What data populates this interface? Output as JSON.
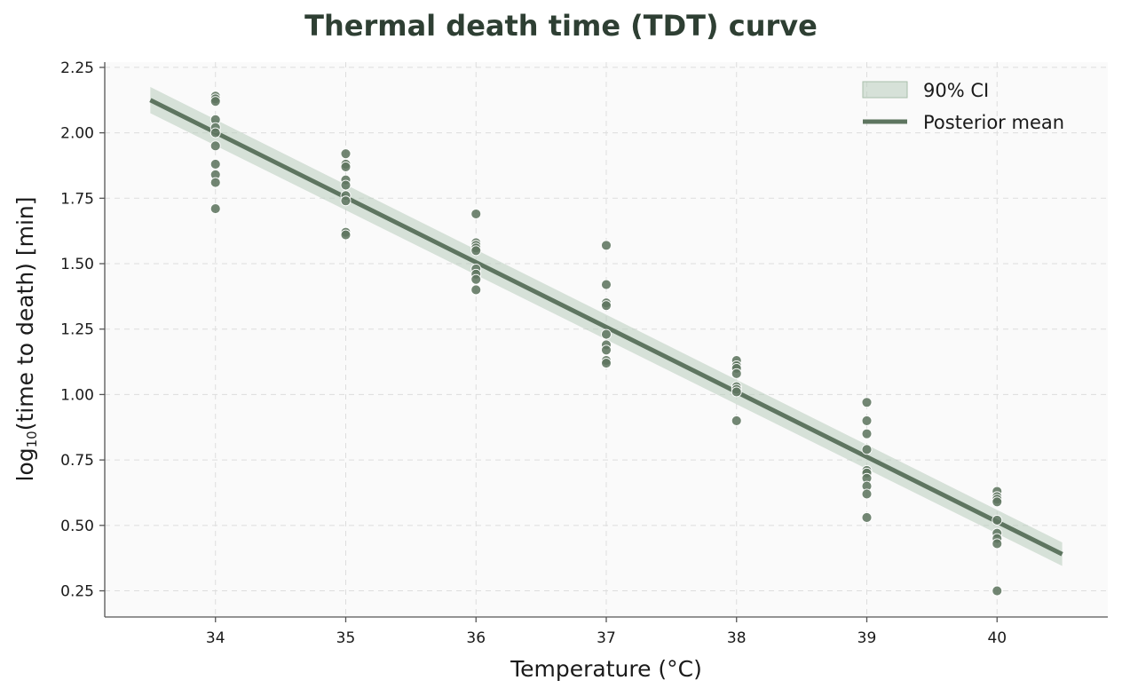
{
  "chart_data": {
    "type": "scatter",
    "title": "Thermal death time (TDT) curve",
    "xlabel": "Temperature (°C)",
    "ylabel_main": "log",
    "ylabel_sub": "10",
    "ylabel_rest": "(time to death) [min]",
    "xlim": [
      33.15,
      40.85
    ],
    "ylim": [
      0.15,
      2.27
    ],
    "xticks": [
      34,
      35,
      36,
      37,
      38,
      39,
      40
    ],
    "xtick_labels": [
      "34",
      "35",
      "36",
      "37",
      "38",
      "39",
      "40"
    ],
    "yticks": [
      0.25,
      0.5,
      0.75,
      1.0,
      1.25,
      1.5,
      1.75,
      2.0,
      2.25
    ],
    "ytick_labels": [
      "0.25",
      "0.50",
      "0.75",
      "1.00",
      "1.25",
      "1.50",
      "1.75",
      "2.00",
      "2.25"
    ],
    "grid": true,
    "legend_position": "top-right",
    "colors": {
      "points": "#5e7560",
      "line": "#5e7560",
      "ci_band": "#b8ccbb",
      "plot_background": "#fafafa",
      "grid": "#dddddd",
      "title": "#2e3f33"
    },
    "series": [
      {
        "name": "observations",
        "points": [
          [
            34,
            2.14
          ],
          [
            34,
            2.13
          ],
          [
            34,
            2.12
          ],
          [
            34,
            2.05
          ],
          [
            34,
            2.02
          ],
          [
            34,
            2.0
          ],
          [
            34,
            1.95
          ],
          [
            34,
            1.88
          ],
          [
            34,
            1.84
          ],
          [
            34,
            1.81
          ],
          [
            34,
            1.71
          ],
          [
            35,
            1.92
          ],
          [
            35,
            1.88
          ],
          [
            35,
            1.87
          ],
          [
            35,
            1.82
          ],
          [
            35,
            1.8
          ],
          [
            35,
            1.76
          ],
          [
            35,
            1.74
          ],
          [
            35,
            1.62
          ],
          [
            35,
            1.61
          ],
          [
            36,
            1.69
          ],
          [
            36,
            1.58
          ],
          [
            36,
            1.57
          ],
          [
            36,
            1.56
          ],
          [
            36,
            1.55
          ],
          [
            36,
            1.48
          ],
          [
            36,
            1.46
          ],
          [
            36,
            1.44
          ],
          [
            36,
            1.4
          ],
          [
            37,
            1.57
          ],
          [
            37,
            1.42
          ],
          [
            37,
            1.35
          ],
          [
            37,
            1.34
          ],
          [
            37,
            1.23
          ],
          [
            37,
            1.19
          ],
          [
            37,
            1.17
          ],
          [
            37,
            1.13
          ],
          [
            37,
            1.12
          ],
          [
            38,
            1.13
          ],
          [
            38,
            1.11
          ],
          [
            38,
            1.1
          ],
          [
            38,
            1.08
          ],
          [
            38,
            1.03
          ],
          [
            38,
            1.02
          ],
          [
            38,
            1.01
          ],
          [
            38,
            0.9
          ],
          [
            39,
            0.97
          ],
          [
            39,
            0.9
          ],
          [
            39,
            0.85
          ],
          [
            39,
            0.79
          ],
          [
            39,
            0.71
          ],
          [
            39,
            0.7
          ],
          [
            39,
            0.68
          ],
          [
            39,
            0.65
          ],
          [
            39,
            0.62
          ],
          [
            39,
            0.53
          ],
          [
            40,
            0.63
          ],
          [
            40,
            0.61
          ],
          [
            40,
            0.6
          ],
          [
            40,
            0.59
          ],
          [
            40,
            0.52
          ],
          [
            40,
            0.47
          ],
          [
            40,
            0.45
          ],
          [
            40,
            0.43
          ],
          [
            40,
            0.25
          ]
        ]
      },
      {
        "name": "Posterior mean",
        "x": [
          33.5,
          40.5
        ],
        "y": [
          2.125,
          0.39
        ]
      },
      {
        "name": "90% CI",
        "x": [
          33.5,
          40.5
        ],
        "lower": [
          2.075,
          0.345
        ],
        "upper": [
          2.175,
          0.435
        ]
      }
    ],
    "legend": [
      "90% CI",
      "Posterior mean"
    ]
  }
}
